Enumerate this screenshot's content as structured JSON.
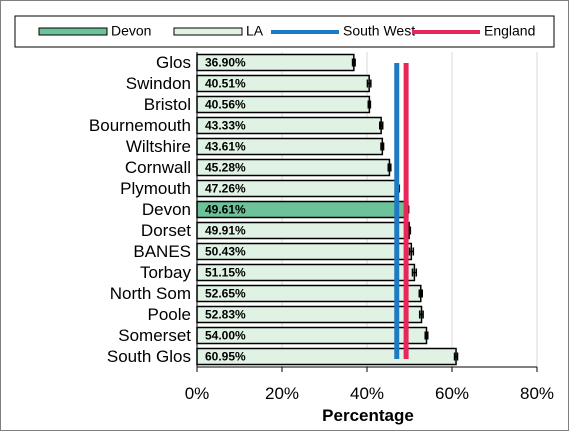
{
  "colors": {
    "devon_bar": "#6dc29a",
    "la_bar": "#dff2e4",
    "bar_outline": "#000000",
    "south_west": "#1f7bc1",
    "england": "#e8265a",
    "grid": "#d9d9d9",
    "error_bar": "#000000"
  },
  "legend": {
    "devon": "Devon",
    "la": "LA",
    "south_west": "South West",
    "england": "England"
  },
  "chart_data": {
    "type": "bar",
    "orientation": "horizontal",
    "categories": [
      "Glos",
      "Swindon",
      "Bristol",
      "Bournemouth",
      "Wiltshire",
      "Cornwall",
      "Plymouth",
      "Devon",
      "Dorset",
      "BANES",
      "Torbay",
      "North Som",
      "Poole",
      "Somerset",
      "South Glos"
    ],
    "values": [
      36.9,
      40.51,
      40.56,
      43.33,
      43.61,
      45.28,
      47.26,
      49.61,
      49.91,
      50.43,
      51.15,
      52.65,
      52.83,
      54.0,
      60.95
    ],
    "value_labels": [
      "36.90%",
      "40.51%",
      "40.56%",
      "43.33%",
      "43.61%",
      "45.28%",
      "47.26%",
      "49.61%",
      "49.91%",
      "50.43%",
      "51.15%",
      "52.65%",
      "52.83%",
      "54.00%",
      "60.95%"
    ],
    "highlight_category": "Devon",
    "error_bars": {
      "Glos": [
        36.6,
        37.2
      ],
      "Swindon": [
        40.1,
        40.9
      ],
      "Bristol": [
        40.3,
        40.8
      ],
      "Bournemouth": [
        43.0,
        43.7
      ],
      "Wiltshire": [
        43.3,
        43.9
      ],
      "Cornwall": [
        45.0,
        45.6
      ],
      "Plymouth": [
        46.9,
        47.6
      ],
      "Devon": [
        49.4,
        49.8
      ],
      "Dorset": [
        49.6,
        50.2
      ],
      "BANES": [
        50.0,
        50.9
      ],
      "Torbay": [
        50.7,
        51.6
      ],
      "North Som": [
        52.3,
        53.0
      ],
      "Poole": [
        52.4,
        53.2
      ],
      "Somerset": [
        53.7,
        54.3
      ],
      "South Glos": [
        60.6,
        61.3
      ]
    },
    "reference_lines": [
      {
        "name": "South West",
        "value": 47.0
      },
      {
        "name": "England",
        "value": 49.2
      }
    ],
    "x_ticks": [
      "0%",
      "20%",
      "40%",
      "60%",
      "80%"
    ],
    "x_tick_values": [
      0,
      20,
      40,
      60,
      80
    ],
    "xlabel": "Percentage",
    "xlim": [
      0,
      80
    ],
    "grid": true,
    "legend_position": "top"
  }
}
